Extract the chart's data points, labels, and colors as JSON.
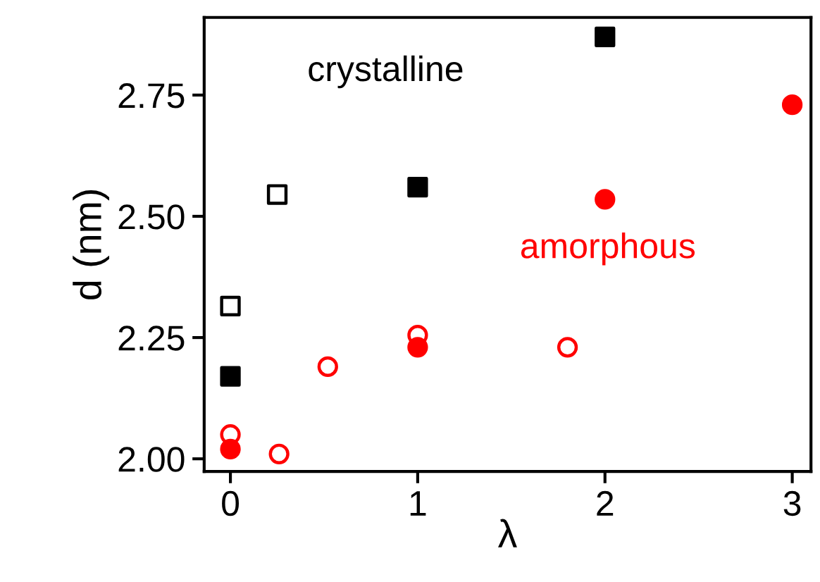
{
  "chart_data": {
    "type": "scatter",
    "xlabel": "λ",
    "ylabel": "d (nm)",
    "annotations": [
      "crystalline",
      "amorphous"
    ],
    "series": [
      {
        "color": "#000000",
        "marker": "square",
        "x": [
          0,
          1,
          2
        ],
        "values": [
          2.17,
          2.56,
          2.87
        ]
      },
      {
        "color": "#000000",
        "marker": "square",
        "x": [
          0,
          0.25
        ],
        "values": [
          2.315,
          2.545
        ]
      },
      {
        "color": "#ff0000",
        "marker": "circle",
        "x": [
          0,
          1,
          2,
          3
        ],
        "values": [
          2.02,
          2.23,
          2.535,
          2.73
        ]
      },
      {
        "color": "#ff0000",
        "marker": "circle",
        "x": [
          0,
          0.26,
          0.52,
          1,
          1.8
        ],
        "values": [
          2.05,
          2.01,
          2.19,
          2.255,
          2.23
        ]
      }
    ],
    "xlim": [
      -0.14,
      3.1
    ],
    "ylim": [
      1.974,
      2.91
    ],
    "xticks": [
      0,
      1,
      2,
      3
    ],
    "yticks": [
      {
        "value": 2.0,
        "label": "2.00"
      },
      {
        "value": 2.25,
        "label": "2.25"
      },
      {
        "value": 2.5,
        "label": "2.50"
      },
      {
        "value": 2.75,
        "label": "2.75"
      }
    ],
    "grid": false,
    "legend": false
  }
}
